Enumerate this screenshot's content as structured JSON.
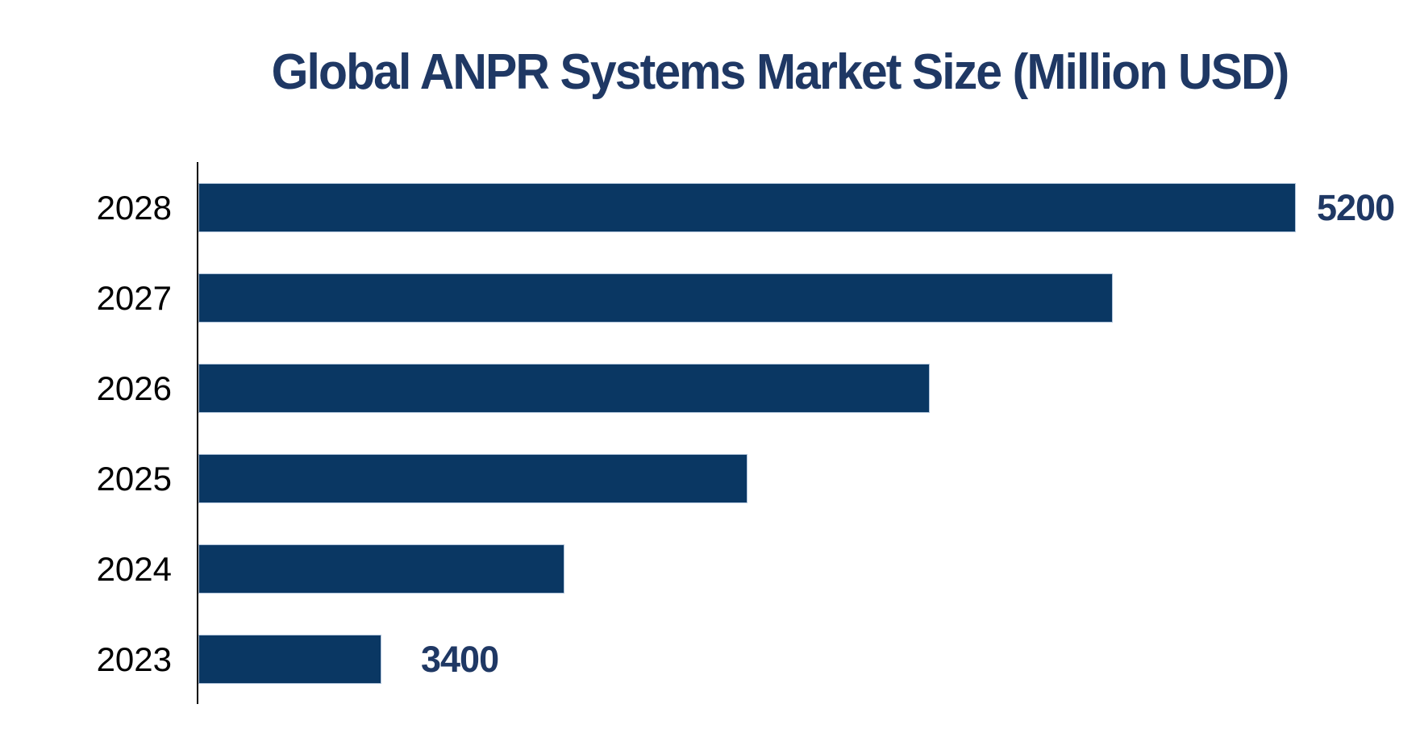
{
  "chart_data": {
    "type": "bar",
    "orientation": "horizontal",
    "title": "Global ANPR Systems Market Size (Million USD)",
    "categories": [
      "2028",
      "2027",
      "2026",
      "2025",
      "2024",
      "2023"
    ],
    "values": [
      5200,
      4840,
      4480,
      4120,
      3760,
      3400
    ],
    "value_labels": [
      "5200",
      "",
      "",
      "",
      "",
      "3400"
    ],
    "labeled_values": {
      "2028": 5200,
      "2023": 3400
    },
    "xlim": [
      3040,
      5200
    ],
    "grid": false,
    "legend": false,
    "colors": {
      "bar_fill": "#0A3763",
      "bar_border": "#AFC3DA",
      "title_text": "#1F3864",
      "value_label_text": "#1F3864",
      "category_label_text": "#000000",
      "axis_line": "#000000",
      "background": "#FFFFFF"
    }
  }
}
